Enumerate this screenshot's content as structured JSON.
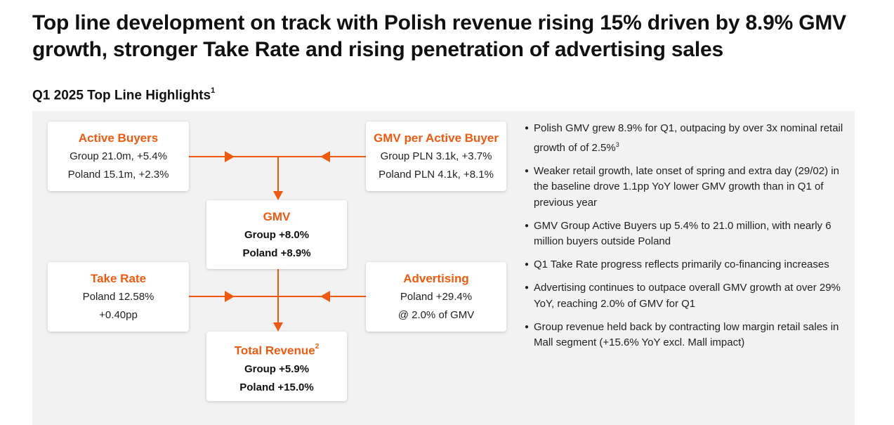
{
  "header": {
    "title": "Top line development on track with Polish revenue rising 15% driven by 8.9% GMV growth, stronger Take Rate and rising penetration of advertising sales",
    "subtitle": "Q1 2025 Top Line Highlights",
    "subtitle_footnote": "1"
  },
  "colors": {
    "accent": "#f05a0f",
    "panel": "#f2f2f2"
  },
  "cards": {
    "active_buyers": {
      "title": "Active Buyers",
      "line1": "Group 21.0m, +5.4%",
      "line2": "Poland 15.1m, +2.3%"
    },
    "gmv_per_buyer": {
      "title": "GMV per Active Buyer",
      "line1": "Group PLN 3.1k, +3.7%",
      "line2": "Poland PLN 4.1k, +8.1%"
    },
    "gmv": {
      "title": "GMV",
      "line1": "Group +8.0%",
      "line2": "Poland +8.9%"
    },
    "take_rate": {
      "title": "Take Rate",
      "line1": "Poland 12.58%",
      "line2": "+0.40pp"
    },
    "advertising": {
      "title": "Advertising",
      "line1": "Poland +29.4%",
      "line2": "@ 2.0% of GMV"
    },
    "total_revenue": {
      "title": "Total Revenue",
      "footnote": "2",
      "line1": "Group +5.9%",
      "line2": "Poland +15.0%"
    }
  },
  "bullets": [
    {
      "text": "Polish GMV grew 8.9% for Q1, outpacing by over 3x nominal retail growth of of 2.5%",
      "footnote": "3"
    },
    {
      "text": "Weaker retail growth, late onset of spring and extra day (29/02) in the baseline drove 1.1pp YoY lower GMV growth than in Q1 of previous year",
      "footnote": ""
    },
    {
      "text": "GMV Group Active Buyers up 5.4% to 21.0 million, with nearly 6 million buyers outside Poland",
      "footnote": ""
    },
    {
      "text": "Q1 Take Rate progress reflects primarily co-financing increases",
      "footnote": ""
    },
    {
      "text": "Advertising continues to outpace overall GMV growth at over 29% YoY, reaching 2.0% of GMV for Q1",
      "footnote": ""
    },
    {
      "text": "Group revenue held back by contracting low margin retail sales in Mall segment (+15.6% YoY excl. Mall impact)",
      "footnote": ""
    }
  ]
}
